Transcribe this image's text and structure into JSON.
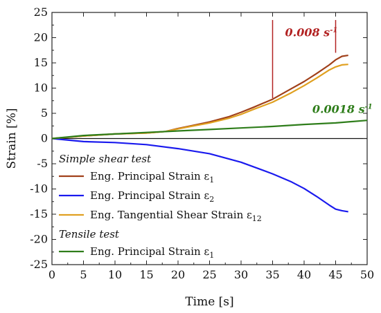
{
  "chart_data": {
    "type": "line",
    "xlabel": "Time [s]",
    "ylabel": "Strain [%]",
    "xlim": [
      0,
      50
    ],
    "ylim": [
      -25,
      25
    ],
    "xticks": [
      "0",
      "5",
      "10",
      "15",
      "20",
      "25",
      "30",
      "35",
      "40",
      "45",
      "50"
    ],
    "yticks": [
      "25",
      "20",
      "15",
      "10",
      "5",
      "0",
      "-5",
      "-10",
      "-15",
      "-20",
      "-25"
    ],
    "legend": {
      "placement": "left",
      "groups": [
        {
          "heading": "Simple shear test",
          "entries": [
            {
              "label": "Eng. Principal Strain ε",
              "sub": "1",
              "color": "#a0401a"
            },
            {
              "label": "Eng. Principal Strain ε",
              "sub": "2",
              "color": "#1a1aee"
            },
            {
              "label": "Eng. Tangential Shear Strain ε",
              "sub": "12",
              "color": "#e0a020"
            }
          ]
        },
        {
          "heading": "Tensile test",
          "entries": [
            {
              "label": "Eng. Principal Strain ε",
              "sub": "1",
              "color": "#2e7d1a"
            }
          ]
        }
      ]
    },
    "annotations": [
      {
        "text": "0.008 s",
        "sup": "-1",
        "color": "#b22222",
        "bracket_x": [
          35,
          45
        ]
      },
      {
        "text": "0.0018 s",
        "sup": "-1",
        "color": "#2e7d1a"
      }
    ],
    "series": [
      {
        "color": "#a0401a",
        "x": [
          0,
          5,
          10,
          15,
          18,
          20,
          22,
          25,
          28,
          30,
          32,
          35,
          38,
          40,
          42,
          44,
          45,
          46,
          47
        ],
        "y": [
          0,
          0.5,
          0.9,
          1.1,
          1.4,
          2.0,
          2.5,
          3.3,
          4.3,
          5.2,
          6.2,
          7.8,
          9.9,
          11.3,
          12.9,
          14.6,
          15.6,
          16.3,
          16.5
        ]
      },
      {
        "color": "#1a1aee",
        "x": [
          0,
          5,
          10,
          15,
          20,
          25,
          30,
          35,
          38,
          40,
          42,
          44,
          45,
          46,
          47
        ],
        "y": [
          0,
          -0.6,
          -0.8,
          -1.2,
          -2.0,
          -3.0,
          -4.7,
          -7.0,
          -8.6,
          -9.9,
          -11.5,
          -13.2,
          -14.0,
          -14.3,
          -14.5
        ]
      },
      {
        "color": "#e0a020",
        "x": [
          0,
          5,
          10,
          15,
          18,
          20,
          22,
          25,
          28,
          30,
          32,
          35,
          38,
          40,
          42,
          44,
          45,
          46,
          47
        ],
        "y": [
          0,
          0.5,
          0.9,
          1.1,
          1.4,
          1.9,
          2.4,
          3.1,
          4.0,
          4.8,
          5.8,
          7.2,
          9.1,
          10.5,
          12.0,
          13.6,
          14.2,
          14.6,
          14.7
        ]
      },
      {
        "color": "#2e7d1a",
        "x": [
          0,
          5,
          10,
          15,
          20,
          25,
          30,
          35,
          40,
          45,
          50
        ],
        "y": [
          0,
          0.6,
          0.9,
          1.2,
          1.5,
          1.8,
          2.1,
          2.4,
          2.8,
          3.1,
          3.6
        ]
      }
    ]
  }
}
